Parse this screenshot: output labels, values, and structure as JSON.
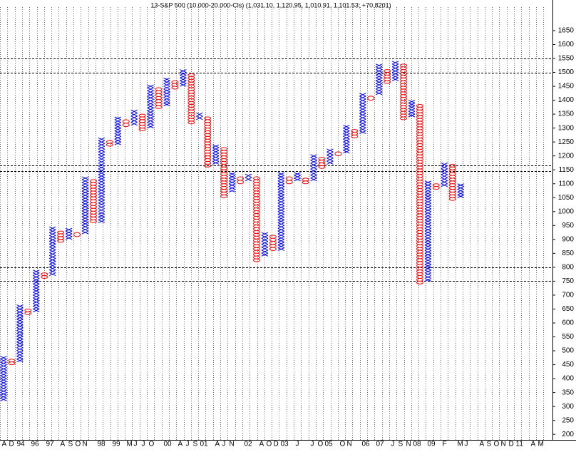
{
  "chart_data": {
    "type": "point-and-figure",
    "title": "13-S&P 500 (10.000-20.000-Cls) (1,031.10, 1,120.95, 1,010.91, 1,101.53; +70.8201)",
    "x_color": "#0000ff",
    "o_color": "#ff0000",
    "box": 10,
    "columns": [
      {
        "kind": "X",
        "low": 320,
        "high": 480
      },
      {
        "kind": "O",
        "low": 450,
        "high": 470
      },
      {
        "kind": "X",
        "low": 460,
        "high": 665
      },
      {
        "kind": "O",
        "low": 630,
        "high": 650
      },
      {
        "kind": "X",
        "low": 640,
        "high": 790
      },
      {
        "kind": "O",
        "low": 760,
        "high": 780
      },
      {
        "kind": "X",
        "low": 770,
        "high": 945
      },
      {
        "kind": "O",
        "low": 890,
        "high": 930
      },
      {
        "kind": "X",
        "low": 900,
        "high": 940
      },
      {
        "kind": "O",
        "low": 910,
        "high": 925
      },
      {
        "kind": "X",
        "low": 920,
        "high": 1125
      },
      {
        "kind": "O",
        "low": 960,
        "high": 1115
      },
      {
        "kind": "X",
        "low": 960,
        "high": 1265
      },
      {
        "kind": "O",
        "low": 1235,
        "high": 1255
      },
      {
        "kind": "X",
        "low": 1240,
        "high": 1340
      },
      {
        "kind": "O",
        "low": 1305,
        "high": 1330
      },
      {
        "kind": "X",
        "low": 1310,
        "high": 1365
      },
      {
        "kind": "O",
        "low": 1290,
        "high": 1350
      },
      {
        "kind": "X",
        "low": 1300,
        "high": 1455
      },
      {
        "kind": "O",
        "low": 1370,
        "high": 1445
      },
      {
        "kind": "X",
        "low": 1380,
        "high": 1480
      },
      {
        "kind": "O",
        "low": 1440,
        "high": 1470
      },
      {
        "kind": "X",
        "low": 1450,
        "high": 1510
      },
      {
        "kind": "O",
        "low": 1315,
        "high": 1495
      },
      {
        "kind": "X",
        "low": 1330,
        "high": 1355
      },
      {
        "kind": "O",
        "low": 1160,
        "high": 1340
      },
      {
        "kind": "X",
        "low": 1170,
        "high": 1240
      },
      {
        "kind": "O",
        "low": 1050,
        "high": 1230
      },
      {
        "kind": "X",
        "low": 1070,
        "high": 1140
      },
      {
        "kind": "O",
        "low": 1100,
        "high": 1125
      },
      {
        "kind": "X",
        "low": 1110,
        "high": 1135
      },
      {
        "kind": "O",
        "low": 820,
        "high": 1125
      },
      {
        "kind": "X",
        "low": 840,
        "high": 925
      },
      {
        "kind": "O",
        "low": 860,
        "high": 915
      },
      {
        "kind": "X",
        "low": 860,
        "high": 1140
      },
      {
        "kind": "O",
        "low": 1100,
        "high": 1125
      },
      {
        "kind": "X",
        "low": 1110,
        "high": 1140
      },
      {
        "kind": "O",
        "low": 1100,
        "high": 1120
      },
      {
        "kind": "X",
        "low": 1110,
        "high": 1205
      },
      {
        "kind": "O",
        "low": 1155,
        "high": 1195
      },
      {
        "kind": "X",
        "low": 1170,
        "high": 1225
      },
      {
        "kind": "O",
        "low": 1200,
        "high": 1215
      },
      {
        "kind": "X",
        "low": 1210,
        "high": 1310
      },
      {
        "kind": "O",
        "low": 1265,
        "high": 1295
      },
      {
        "kind": "X",
        "low": 1280,
        "high": 1425
      },
      {
        "kind": "O",
        "low": 1400,
        "high": 1415
      },
      {
        "kind": "X",
        "low": 1420,
        "high": 1530
      },
      {
        "kind": "O",
        "low": 1460,
        "high": 1510
      },
      {
        "kind": "X",
        "low": 1470,
        "high": 1540
      },
      {
        "kind": "O",
        "low": 1330,
        "high": 1530
      },
      {
        "kind": "X",
        "low": 1340,
        "high": 1400
      },
      {
        "kind": "O",
        "low": 740,
        "high": 1385
      },
      {
        "kind": "X",
        "low": 750,
        "high": 1110
      },
      {
        "kind": "O",
        "low": 1080,
        "high": 1100
      },
      {
        "kind": "X",
        "low": 1090,
        "high": 1175
      },
      {
        "kind": "O",
        "low": 1040,
        "high": 1170
      },
      {
        "kind": "X",
        "low": 1050,
        "high": 1100
      }
    ],
    "hlines": [
      1550,
      1500,
      1165,
      1145,
      800,
      750
    ],
    "categories": [
      "A",
      "D",
      "94",
      null,
      "96",
      null,
      "97",
      null,
      "A",
      "S",
      "O",
      "N",
      null,
      "98",
      null,
      "99",
      null,
      "M",
      "J",
      "J",
      "O",
      null,
      "00",
      null,
      "A",
      "J",
      "S",
      "01",
      null,
      "A",
      "J",
      "N",
      null,
      "02",
      null,
      "A",
      "O",
      "D",
      "03",
      null,
      "J",
      null,
      "J",
      "O",
      "05",
      null,
      "O",
      "N",
      null,
      "06",
      null,
      "07",
      null,
      "J",
      "S",
      "N",
      "08",
      null,
      "09",
      null,
      "F",
      null,
      "M",
      "J",
      null,
      "A",
      "S",
      "O",
      "N",
      "D",
      "11",
      null,
      "A",
      "M",
      null
    ],
    "ylim": [
      180,
      1760
    ],
    "yticks": [
      200,
      250,
      300,
      350,
      400,
      450,
      500,
      550,
      600,
      650,
      700,
      750,
      800,
      850,
      900,
      950,
      1000,
      1050,
      1100,
      1150,
      1200,
      1250,
      1300,
      1350,
      1400,
      1450,
      1500,
      1550,
      1600,
      1650
    ]
  }
}
